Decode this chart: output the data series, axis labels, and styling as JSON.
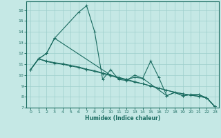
{
  "xlabel": "Humidex (Indice chaleur)",
  "xlim": [
    -0.5,
    23.5
  ],
  "ylim": [
    7,
    16.8
  ],
  "yticks": [
    7,
    8,
    9,
    10,
    11,
    12,
    13,
    14,
    15,
    16
  ],
  "xticks": [
    0,
    1,
    2,
    3,
    4,
    5,
    6,
    7,
    8,
    9,
    10,
    11,
    12,
    13,
    14,
    15,
    16,
    17,
    18,
    19,
    20,
    21,
    22,
    23
  ],
  "background_color": "#c5e8e5",
  "grid_color": "#9dcfcc",
  "line_color": "#1a6b60",
  "line1_x": [
    0,
    1,
    2,
    3,
    6,
    7,
    8,
    9,
    10,
    11,
    12,
    13,
    14,
    15,
    16,
    17,
    18,
    19,
    20,
    21,
    22,
    23
  ],
  "line1_y": [
    10.5,
    11.5,
    12.0,
    13.4,
    15.8,
    16.4,
    14.0,
    9.6,
    10.5,
    9.6,
    9.5,
    10.0,
    9.7,
    11.3,
    9.8,
    8.1,
    8.4,
    8.1,
    8.2,
    8.2,
    7.9,
    7.1
  ],
  "line2_x": [
    0,
    1,
    2,
    3,
    10,
    11,
    12,
    13,
    14,
    17,
    18,
    19,
    20,
    21,
    22,
    23
  ],
  "line2_y": [
    10.5,
    11.5,
    12.0,
    13.4,
    10.0,
    9.7,
    9.6,
    9.8,
    9.7,
    8.1,
    8.4,
    8.1,
    8.2,
    8.2,
    7.9,
    7.1
  ],
  "line3_x": [
    0,
    1,
    2,
    3,
    4,
    5,
    6,
    7,
    8,
    9,
    10,
    11,
    12,
    13,
    14,
    15,
    16,
    17,
    18,
    19,
    20,
    21,
    22,
    23
  ],
  "line3_y": [
    10.5,
    11.5,
    11.25,
    11.1,
    11.0,
    10.85,
    10.7,
    10.5,
    10.35,
    10.15,
    9.95,
    9.75,
    9.55,
    9.35,
    9.2,
    9.0,
    8.8,
    8.6,
    8.42,
    8.28,
    8.15,
    8.05,
    7.9,
    7.1
  ],
  "line4_y": [
    10.5,
    11.5,
    11.3,
    11.15,
    11.05,
    10.9,
    10.75,
    10.55,
    10.4,
    10.2,
    10.0,
    9.8,
    9.6,
    9.4,
    9.2,
    9.0,
    8.8,
    8.6,
    8.42,
    8.28,
    8.15,
    8.05,
    7.9,
    7.1
  ]
}
